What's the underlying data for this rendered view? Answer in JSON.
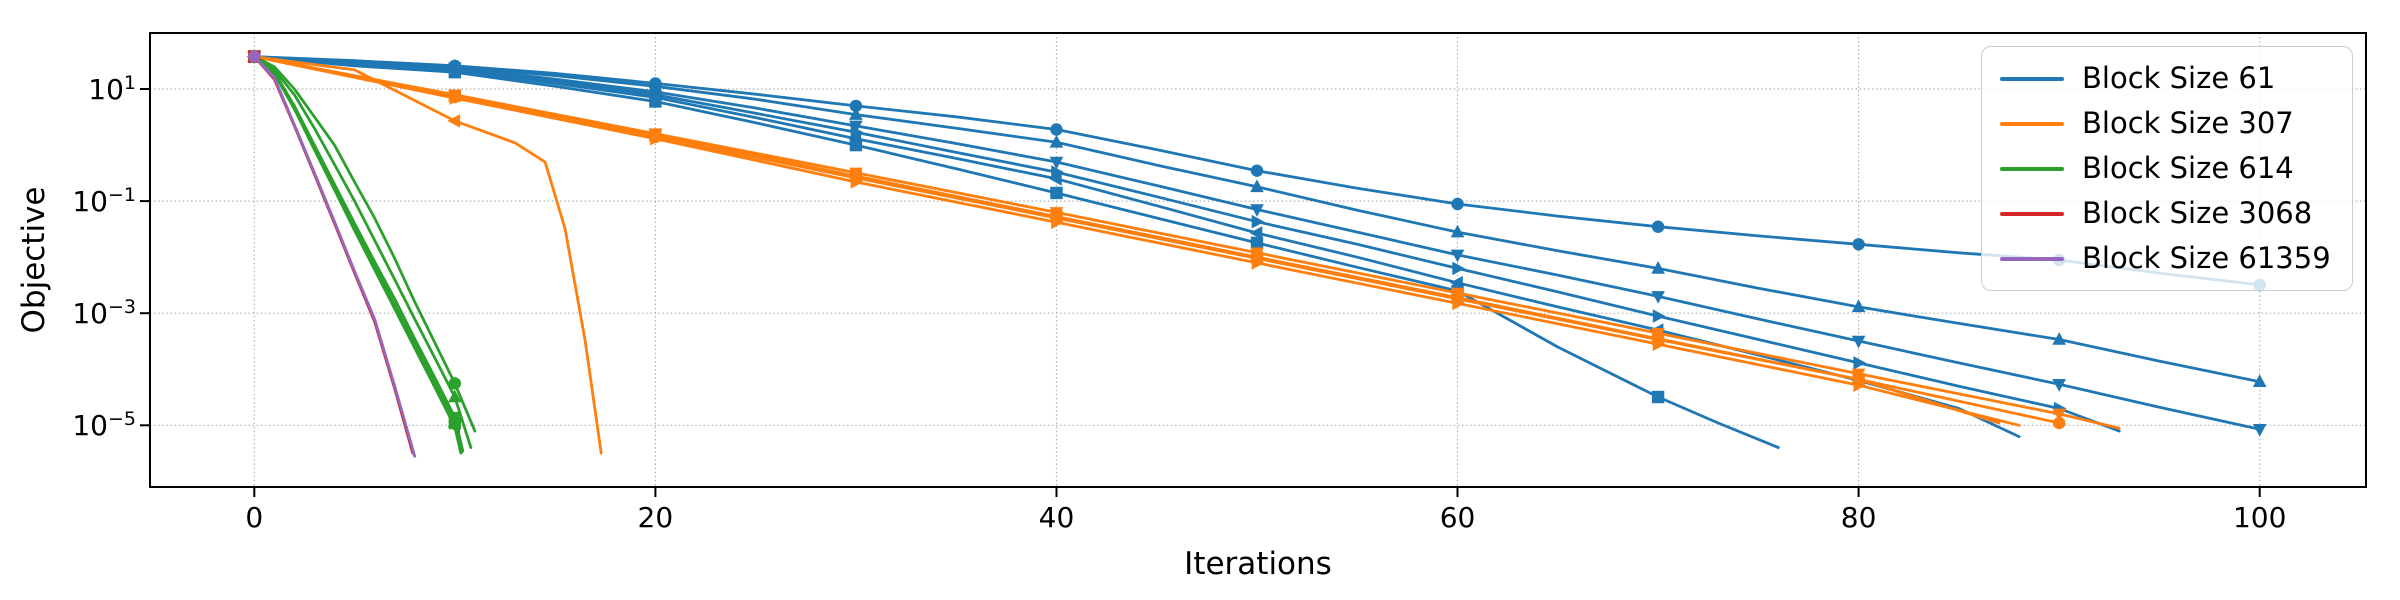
{
  "chart_data": {
    "type": "line",
    "title": "",
    "xlabel": "Iterations",
    "ylabel": "Objective",
    "x_ticks": [
      0,
      20,
      40,
      60,
      80,
      100
    ],
    "y_ticks": [
      {
        "base": "10",
        "exp_label": "1",
        "exp": 1
      },
      {
        "base": "10",
        "exp_label": "−1",
        "exp": -1
      },
      {
        "base": "10",
        "exp_label": "−3",
        "exp": -3
      },
      {
        "base": "10",
        "exp_label": "−5",
        "exp": -5
      }
    ],
    "xlim": [
      -5.2,
      105.3
    ],
    "ylim_exp": [
      2,
      -6.1
    ],
    "y_scale": "log",
    "grid": true,
    "legend_loc": "upper right",
    "marker_every": 10,
    "colors": {
      "blue": "#1f77b4",
      "orange": "#ff7f0e",
      "green": "#2ca02c",
      "red": "#d62728",
      "purple": "#9467bd"
    },
    "legend": [
      {
        "label": "Block Size 61",
        "color": "blue"
      },
      {
        "label": "Block Size 307",
        "color": "orange"
      },
      {
        "label": "Block Size 614",
        "color": "green"
      },
      {
        "label": "Block Size 3068",
        "color": "red"
      },
      {
        "label": "Block Size 61359",
        "color": "purple"
      }
    ],
    "series": [
      {
        "group": "Block Size 61",
        "color": "blue",
        "marker": "o",
        "points": [
          [
            0,
            38
          ],
          [
            5,
            32
          ],
          [
            10,
            26
          ],
          [
            15,
            19
          ],
          [
            20,
            12.6
          ],
          [
            25,
            8.1
          ],
          [
            30,
            5.0
          ],
          [
            35,
            3.2
          ],
          [
            40,
            1.9
          ],
          [
            45,
            0.83
          ],
          [
            50,
            0.35
          ],
          [
            55,
            0.17
          ],
          [
            60,
            0.089
          ],
          [
            65,
            0.054
          ],
          [
            70,
            0.035
          ],
          [
            75,
            0.024
          ],
          [
            80,
            0.017
          ],
          [
            85,
            0.012
          ],
          [
            90,
            0.0089
          ],
          [
            95,
            0.0052
          ],
          [
            100,
            0.0032
          ]
        ]
      },
      {
        "group": "Block Size 61",
        "color": "blue",
        "marker": "^",
        "points": [
          [
            0,
            38
          ],
          [
            5,
            30
          ],
          [
            10,
            25
          ],
          [
            15,
            17.4
          ],
          [
            20,
            11.2
          ],
          [
            25,
            6.6
          ],
          [
            30,
            3.5
          ],
          [
            35,
            2.0
          ],
          [
            40,
            1.12
          ],
          [
            45,
            0.44
          ],
          [
            50,
            0.18
          ],
          [
            55,
            0.069
          ],
          [
            60,
            0.028
          ],
          [
            65,
            0.013
          ],
          [
            70,
            0.0063
          ],
          [
            75,
            0.0028
          ],
          [
            80,
            0.0013
          ],
          [
            85,
            0.00066
          ],
          [
            90,
            0.00034
          ],
          [
            95,
            0.00014
          ],
          [
            100,
            6e-05
          ]
        ]
      },
      {
        "group": "Block Size 61",
        "color": "blue",
        "marker": "v",
        "points": [
          [
            0,
            38
          ],
          [
            5,
            29
          ],
          [
            10,
            24
          ],
          [
            15,
            15
          ],
          [
            20,
            8.9
          ],
          [
            25,
            4.6
          ],
          [
            30,
            2.2
          ],
          [
            35,
            1.07
          ],
          [
            40,
            0.5
          ],
          [
            45,
            0.19
          ],
          [
            50,
            0.071
          ],
          [
            55,
            0.028
          ],
          [
            60,
            0.011
          ],
          [
            65,
            0.0048
          ],
          [
            70,
            0.002
          ],
          [
            75,
            0.00079
          ],
          [
            80,
            0.00032
          ],
          [
            85,
            0.00013
          ],
          [
            90,
            5.4e-05
          ],
          [
            95,
            2.1e-05
          ],
          [
            100,
            8.5e-06
          ]
        ]
      },
      {
        "group": "Block Size 61",
        "color": "blue",
        "marker": ">",
        "points": [
          [
            0,
            38
          ],
          [
            5,
            28
          ],
          [
            10,
            23
          ],
          [
            15,
            14
          ],
          [
            20,
            7.9
          ],
          [
            25,
            3.7
          ],
          [
            30,
            1.7
          ],
          [
            35,
            0.74
          ],
          [
            40,
            0.33
          ],
          [
            45,
            0.12
          ],
          [
            50,
            0.043
          ],
          [
            55,
            0.017
          ],
          [
            60,
            0.0063
          ],
          [
            65,
            0.0024
          ],
          [
            70,
            0.00089
          ],
          [
            75,
            0.00034
          ],
          [
            80,
            0.00013
          ],
          [
            85,
            5e-05
          ],
          [
            90,
            2e-05
          ],
          [
            93,
            7.9e-06
          ]
        ]
      },
      {
        "group": "Block Size 61",
        "color": "blue",
        "marker": "<",
        "points": [
          [
            0,
            38
          ],
          [
            5,
            28
          ],
          [
            10,
            22
          ],
          [
            15,
            12.6
          ],
          [
            20,
            7.1
          ],
          [
            25,
            3.1
          ],
          [
            30,
            1.3
          ],
          [
            35,
            0.58
          ],
          [
            40,
            0.25
          ],
          [
            45,
            0.083
          ],
          [
            50,
            0.027
          ],
          [
            55,
            0.01
          ],
          [
            60,
            0.0035
          ],
          [
            65,
            0.0013
          ],
          [
            70,
            0.0005
          ],
          [
            75,
            0.00018
          ],
          [
            80,
            6.3e-05
          ],
          [
            85,
            2e-05
          ],
          [
            88,
            6.3e-06
          ]
        ]
      },
      {
        "group": "Block Size 61",
        "color": "blue",
        "marker": "s",
        "points": [
          [
            0,
            38
          ],
          [
            5,
            26
          ],
          [
            10,
            20
          ],
          [
            15,
            11.2
          ],
          [
            20,
            6.0
          ],
          [
            25,
            2.5
          ],
          [
            30,
            1.0
          ],
          [
            35,
            0.38
          ],
          [
            40,
            0.14
          ],
          [
            45,
            0.05
          ],
          [
            50,
            0.018
          ],
          [
            55,
            0.0066
          ],
          [
            60,
            0.0025
          ],
          [
            65,
            0.00025
          ],
          [
            70,
            3.2e-05
          ],
          [
            73,
            1.1e-05
          ],
          [
            76,
            4e-06
          ]
        ]
      },
      {
        "group": "Block Size 307",
        "color": "orange",
        "marker": "s",
        "points": [
          [
            0,
            38
          ],
          [
            10,
            7.6
          ],
          [
            20,
            1.5
          ],
          [
            30,
            0.28
          ],
          [
            40,
            0.053
          ],
          [
            50,
            0.01
          ],
          [
            60,
            0.0019
          ],
          [
            70,
            0.00035
          ],
          [
            80,
            6.6e-05
          ],
          [
            87,
            1.1e-05
          ]
        ]
      },
      {
        "group": "Block Size 307",
        "color": "orange",
        "marker": "o",
        "points": [
          [
            0,
            38
          ],
          [
            10,
            7.2
          ],
          [
            20,
            1.4
          ],
          [
            30,
            0.26
          ],
          [
            40,
            0.05
          ],
          [
            50,
            0.0095
          ],
          [
            60,
            0.0018
          ],
          [
            70,
            0.00034
          ],
          [
            80,
            6.6e-05
          ],
          [
            90,
            1.1e-05
          ]
        ]
      },
      {
        "group": "Block Size 307",
        "color": "orange",
        "marker": "v",
        "points": [
          [
            0,
            38
          ],
          [
            10,
            7.9
          ],
          [
            20,
            1.6
          ],
          [
            30,
            0.32
          ],
          [
            40,
            0.063
          ],
          [
            50,
            0.012
          ],
          [
            60,
            0.0023
          ],
          [
            70,
            0.00044
          ],
          [
            80,
            8.3e-05
          ],
          [
            90,
            1.6e-05
          ],
          [
            93,
            8.9e-06
          ]
        ]
      },
      {
        "group": "Block Size 307",
        "color": "orange",
        "marker": ">",
        "points": [
          [
            0,
            38
          ],
          [
            10,
            6.9
          ],
          [
            20,
            1.3
          ],
          [
            30,
            0.22
          ],
          [
            40,
            0.042
          ],
          [
            50,
            0.0079
          ],
          [
            60,
            0.0015
          ],
          [
            70,
            0.00028
          ],
          [
            80,
            5.2e-05
          ],
          [
            88,
            1e-05
          ]
        ]
      },
      {
        "group": "Block Size 307",
        "color": "orange",
        "marker": "<",
        "points": [
          [
            0,
            38
          ],
          [
            5,
            22
          ],
          [
            10,
            2.7
          ],
          [
            13,
            1.1
          ],
          [
            14.5,
            0.5
          ],
          [
            15.5,
            0.032
          ],
          [
            16.5,
            0.00032
          ],
          [
            17.3,
            3.2e-06
          ]
        ]
      },
      {
        "group": "Block Size 614",
        "color": "green",
        "marker": "v",
        "points": [
          [
            0,
            38
          ],
          [
            1,
            20
          ],
          [
            2,
            5.0
          ],
          [
            3,
            1.0
          ],
          [
            4,
            0.2
          ],
          [
            5,
            0.04
          ],
          [
            6,
            0.0083
          ],
          [
            7,
            0.0018
          ],
          [
            8,
            0.00035
          ],
          [
            9,
            7.1e-05
          ],
          [
            10,
            1.4e-05
          ],
          [
            10.4,
            3.5e-06
          ]
        ]
      },
      {
        "group": "Block Size 614",
        "color": "green",
        "marker": "<",
        "points": [
          [
            0,
            38
          ],
          [
            1,
            19
          ],
          [
            2,
            4.4
          ],
          [
            3,
            0.83
          ],
          [
            4,
            0.16
          ],
          [
            5,
            0.03
          ],
          [
            6,
            0.006
          ],
          [
            7,
            0.0012
          ],
          [
            8,
            0.00024
          ],
          [
            9,
            4.8e-05
          ],
          [
            10,
            9.5e-06
          ],
          [
            10.3,
            3.2e-06
          ]
        ]
      },
      {
        "group": "Block Size 614",
        "color": "green",
        "marker": "s",
        "points": [
          [
            0,
            38
          ],
          [
            1,
            19
          ],
          [
            2,
            4.7
          ],
          [
            3,
            0.93
          ],
          [
            4,
            0.18
          ],
          [
            5,
            0.035
          ],
          [
            6,
            0.0071
          ],
          [
            7,
            0.0014
          ],
          [
            8,
            0.00028
          ],
          [
            9,
            5.6e-05
          ],
          [
            10,
            1.1e-05
          ],
          [
            10.35,
            3.3e-06
          ]
        ]
      },
      {
        "group": "Block Size 614",
        "color": "green",
        "marker": "^",
        "points": [
          [
            0,
            38
          ],
          [
            1,
            22
          ],
          [
            2,
            7.9
          ],
          [
            3,
            2.0
          ],
          [
            4,
            0.45
          ],
          [
            5,
            0.1
          ],
          [
            6,
            0.02
          ],
          [
            7,
            0.004
          ],
          [
            8,
            0.00079
          ],
          [
            9,
            0.00016
          ],
          [
            10,
            3.2e-05
          ],
          [
            10.8,
            4e-06
          ]
        ]
      },
      {
        "group": "Block Size 614",
        "color": "green",
        "marker": "o",
        "points": [
          [
            0,
            38
          ],
          [
            1,
            25
          ],
          [
            2,
            10
          ],
          [
            3,
            3.2
          ],
          [
            4,
            1.0
          ],
          [
            5,
            0.22
          ],
          [
            6,
            0.05
          ],
          [
            7,
            0.0095
          ],
          [
            8,
            0.0016
          ],
          [
            9,
            0.0003
          ],
          [
            10,
            5.6e-05
          ],
          [
            11,
            7.9e-06
          ]
        ]
      },
      {
        "group": "Block Size 3068",
        "color": "red",
        "marker": "s",
        "points": [
          [
            0,
            38
          ],
          [
            1,
            15
          ],
          [
            2,
            2.2
          ],
          [
            3,
            0.3
          ],
          [
            4,
            0.04
          ],
          [
            5,
            0.0052
          ],
          [
            6,
            0.00071
          ],
          [
            7,
            4.5e-05
          ],
          [
            7.9,
            3.2e-06
          ]
        ]
      },
      {
        "group": "Block Size 61359",
        "color": "purple",
        "marker": "o",
        "points": [
          [
            0,
            38
          ],
          [
            1,
            16
          ],
          [
            2,
            2.3
          ],
          [
            3,
            0.32
          ],
          [
            4,
            0.043
          ],
          [
            5,
            0.0056
          ],
          [
            6,
            0.00079
          ],
          [
            7,
            5e-05
          ],
          [
            8,
            2.8e-06
          ]
        ]
      }
    ]
  }
}
